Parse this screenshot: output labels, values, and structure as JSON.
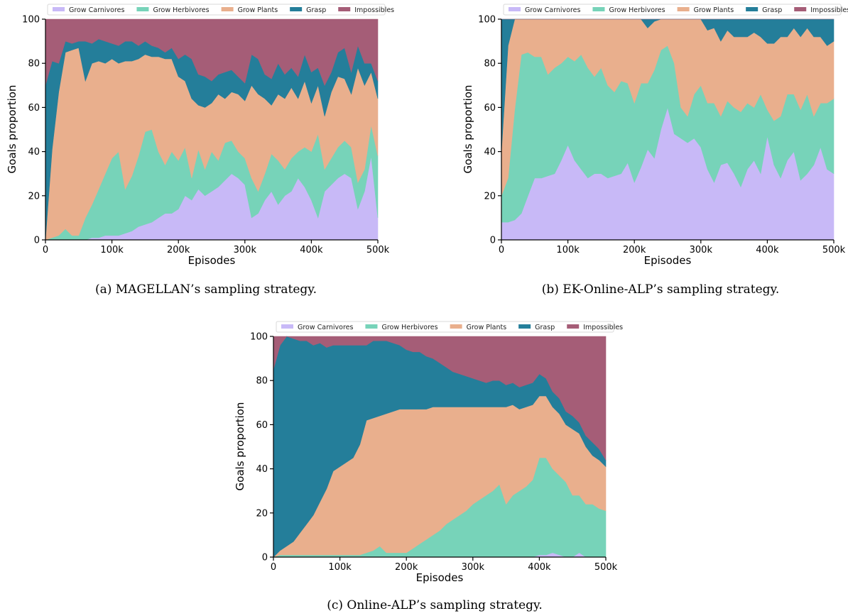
{
  "chart_data": [
    {
      "type": "area",
      "stacked": true,
      "normalized": true,
      "caption": "(a) MAGELLAN’s sampling strategy.",
      "xlabel": "Episodes",
      "ylabel": "Goals proportion",
      "xlim": [
        0,
        500000
      ],
      "ylim": [
        0,
        100
      ],
      "xticks": [
        "0",
        "100k",
        "200k",
        "300k",
        "400k",
        "500k"
      ],
      "yticks": [
        "0",
        "20",
        "40",
        "60",
        "80",
        "100"
      ],
      "legend_position": "top",
      "x": [
        0,
        10000,
        20000,
        30000,
        40000,
        50000,
        60000,
        70000,
        80000,
        90000,
        100000,
        110000,
        120000,
        130000,
        140000,
        150000,
        160000,
        170000,
        180000,
        190000,
        200000,
        210000,
        220000,
        230000,
        240000,
        250000,
        260000,
        270000,
        280000,
        290000,
        300000,
        310000,
        320000,
        330000,
        340000,
        350000,
        360000,
        370000,
        380000,
        390000,
        400000,
        410000,
        420000,
        430000,
        440000,
        450000,
        460000,
        470000,
        480000,
        490000,
        500000
      ],
      "series": [
        {
          "name": "Grow Carnivores",
          "color": "#c8b9f7",
          "values": [
            0,
            0,
            0,
            0,
            0,
            0,
            0,
            1,
            1,
            2,
            2,
            2,
            3,
            4,
            6,
            7,
            8,
            10,
            12,
            12,
            14,
            20,
            18,
            23,
            20,
            22,
            24,
            27,
            30,
            28,
            25,
            10,
            12,
            18,
            22,
            16,
            20,
            22,
            28,
            24,
            18,
            10,
            22,
            25,
            28,
            30,
            28,
            14,
            22,
            38,
            10
          ]
        },
        {
          "name": "Grow Herbivores",
          "color": "#77d3b9",
          "values": [
            0,
            1,
            2,
            5,
            2,
            2,
            10,
            15,
            22,
            28,
            35,
            38,
            20,
            25,
            32,
            42,
            42,
            30,
            22,
            28,
            22,
            22,
            10,
            18,
            12,
            18,
            12,
            17,
            15,
            12,
            12,
            18,
            10,
            12,
            17,
            20,
            12,
            15,
            12,
            18,
            22,
            38,
            10,
            12,
            14,
            15,
            14,
            12,
            10,
            14,
            28
          ]
        },
        {
          "name": "Grow Plants",
          "color": "#e9af8d",
          "values": [
            0,
            40,
            65,
            80,
            84,
            85,
            62,
            64,
            58,
            50,
            45,
            40,
            58,
            52,
            44,
            35,
            33,
            43,
            48,
            42,
            38,
            30,
            36,
            20,
            28,
            22,
            30,
            20,
            22,
            26,
            26,
            42,
            44,
            34,
            22,
            30,
            32,
            32,
            24,
            30,
            22,
            22,
            24,
            30,
            32,
            28,
            24,
            52,
            38,
            24,
            26
          ]
        },
        {
          "name": "Grasp",
          "color": "#247e9a",
          "values": [
            70,
            40,
            13,
            5,
            3,
            3,
            18,
            9,
            10,
            10,
            7,
            8,
            9,
            9,
            6,
            6,
            5,
            4,
            3,
            5,
            8,
            12,
            18,
            14,
            14,
            10,
            9,
            12,
            10,
            8,
            8,
            14,
            16,
            11,
            12,
            14,
            11,
            9,
            10,
            12,
            14,
            8,
            14,
            9,
            11,
            14,
            10,
            10,
            10,
            4,
            8
          ]
        },
        {
          "name": "Impossibles",
          "color": "#a55d77",
          "values": [
            30,
            19,
            20,
            10,
            11,
            10,
            10,
            11,
            9,
            10,
            11,
            12,
            10,
            10,
            12,
            10,
            12,
            13,
            15,
            13,
            18,
            16,
            18,
            25,
            26,
            28,
            25,
            24,
            23,
            26,
            29,
            16,
            18,
            25,
            27,
            20,
            25,
            22,
            26,
            16,
            24,
            22,
            30,
            24,
            15,
            13,
            24,
            12,
            20,
            20,
            28
          ]
        }
      ]
    },
    {
      "type": "area",
      "stacked": true,
      "normalized": true,
      "caption": "(b) EK-Online-ALP’s sampling strategy.",
      "xlabel": "Episodes",
      "ylabel": "Goals proportion",
      "xlim": [
        0,
        500000
      ],
      "ylim": [
        0,
        100
      ],
      "xticks": [
        "0",
        "100k",
        "200k",
        "300k",
        "400k",
        "500k"
      ],
      "yticks": [
        "0",
        "20",
        "40",
        "60",
        "80",
        "100"
      ],
      "legend_position": "top",
      "x": [
        0,
        10000,
        20000,
        30000,
        40000,
        50000,
        60000,
        70000,
        80000,
        90000,
        100000,
        110000,
        120000,
        130000,
        140000,
        150000,
        160000,
        170000,
        180000,
        190000,
        200000,
        210000,
        220000,
        230000,
        240000,
        250000,
        260000,
        270000,
        280000,
        290000,
        300000,
        310000,
        320000,
        330000,
        340000,
        350000,
        360000,
        370000,
        380000,
        390000,
        400000,
        410000,
        420000,
        430000,
        440000,
        450000,
        460000,
        470000,
        480000,
        490000,
        500000
      ],
      "series": [
        {
          "name": "Grow Carnivores",
          "color": "#c8b9f7",
          "values": [
            8,
            8,
            9,
            12,
            20,
            28,
            28,
            29,
            30,
            36,
            43,
            36,
            32,
            28,
            30,
            30,
            28,
            29,
            30,
            35,
            26,
            33,
            41,
            37,
            50,
            60,
            48,
            46,
            44,
            46,
            42,
            32,
            26,
            34,
            35,
            30,
            24,
            32,
            36,
            30,
            47,
            34,
            28,
            36,
            40,
            27,
            30,
            34,
            42,
            32,
            30
          ]
        },
        {
          "name": "Grow Herbivores",
          "color": "#77d3b9",
          "values": [
            12,
            20,
            50,
            72,
            65,
            55,
            55,
            46,
            48,
            44,
            40,
            45,
            52,
            50,
            44,
            48,
            42,
            38,
            42,
            36,
            36,
            38,
            30,
            40,
            36,
            28,
            32,
            14,
            12,
            20,
            28,
            30,
            36,
            22,
            28,
            30,
            34,
            30,
            24,
            36,
            12,
            20,
            28,
            30,
            26,
            32,
            36,
            22,
            20,
            30,
            34
          ]
        },
        {
          "name": "Grow Plants",
          "color": "#e9af8d",
          "values": [
            20,
            60,
            41,
            16,
            15,
            17,
            17,
            25,
            22,
            20,
            17,
            19,
            16,
            22,
            26,
            22,
            30,
            33,
            28,
            29,
            38,
            29,
            25,
            22,
            14,
            12,
            20,
            40,
            44,
            34,
            30,
            33,
            34,
            34,
            32,
            32,
            34,
            30,
            34,
            26,
            30,
            35,
            36,
            26,
            30,
            33,
            30,
            36,
            30,
            26,
            26
          ]
        },
        {
          "name": "Grasp",
          "color": "#247e9a",
          "values": [
            60,
            12,
            0,
            0,
            0,
            0,
            0,
            0,
            0,
            0,
            0,
            0,
            0,
            0,
            0,
            0,
            0,
            0,
            0,
            0,
            0,
            0,
            4,
            1,
            0,
            0,
            0,
            0,
            0,
            0,
            0,
            5,
            4,
            10,
            5,
            8,
            8,
            8,
            6,
            8,
            11,
            11,
            8,
            8,
            4,
            8,
            4,
            8,
            8,
            12,
            10
          ]
        },
        {
          "name": "Impossibles",
          "color": "#a55d77",
          "values": [
            0,
            0,
            0,
            0,
            0,
            0,
            0,
            0,
            0,
            0,
            0,
            0,
            0,
            0,
            0,
            0,
            0,
            0,
            0,
            0,
            0,
            0,
            0,
            0,
            0,
            0,
            0,
            0,
            0,
            0,
            0,
            0,
            0,
            0,
            0,
            0,
            0,
            0,
            0,
            0,
            0,
            0,
            0,
            0,
            0,
            0,
            0,
            0,
            0,
            0,
            0
          ]
        }
      ]
    },
    {
      "type": "area",
      "stacked": true,
      "normalized": true,
      "caption": "(c) Online-ALP’s sampling strategy.",
      "xlabel": "Episodes",
      "ylabel": "Goals proportion",
      "xlim": [
        0,
        500000
      ],
      "ylim": [
        0,
        100
      ],
      "xticks": [
        "0",
        "100k",
        "200k",
        "300k",
        "400k",
        "500k"
      ],
      "yticks": [
        "0",
        "20",
        "40",
        "60",
        "80",
        "100"
      ],
      "legend_position": "top",
      "x": [
        0,
        10000,
        20000,
        30000,
        40000,
        50000,
        60000,
        70000,
        80000,
        90000,
        100000,
        110000,
        120000,
        130000,
        140000,
        150000,
        160000,
        170000,
        180000,
        190000,
        200000,
        210000,
        220000,
        230000,
        240000,
        250000,
        260000,
        270000,
        280000,
        290000,
        300000,
        310000,
        320000,
        330000,
        340000,
        350000,
        360000,
        370000,
        380000,
        390000,
        400000,
        410000,
        420000,
        430000,
        440000,
        450000,
        460000,
        470000,
        480000,
        490000,
        500000
      ],
      "series": [
        {
          "name": "Grow Carnivores",
          "color": "#c8b9f7",
          "values": [
            0,
            0,
            0,
            0,
            0,
            0,
            0,
            0,
            0,
            0,
            0,
            0,
            0,
            0,
            0,
            0,
            0,
            0,
            0,
            0,
            0,
            0,
            0,
            0,
            0,
            0,
            0,
            0,
            0,
            0,
            0,
            0,
            0,
            0,
            0,
            0,
            0,
            0,
            0,
            0,
            1,
            1,
            2,
            1,
            0,
            0,
            2,
            0,
            0,
            0,
            0
          ]
        },
        {
          "name": "Grow Herbivores",
          "color": "#77d3b9",
          "values": [
            0,
            1,
            1,
            1,
            1,
            1,
            1,
            1,
            1,
            1,
            1,
            1,
            1,
            1,
            2,
            3,
            5,
            2,
            2,
            2,
            2,
            4,
            6,
            8,
            10,
            12,
            15,
            17,
            19,
            21,
            24,
            26,
            28,
            30,
            33,
            24,
            28,
            30,
            32,
            35,
            44,
            44,
            38,
            36,
            34,
            28,
            26,
            24,
            24,
            22,
            21
          ]
        },
        {
          "name": "Grow Plants",
          "color": "#e9af8d",
          "values": [
            0,
            2,
            4,
            6,
            10,
            14,
            18,
            24,
            30,
            38,
            40,
            42,
            44,
            50,
            60,
            60,
            59,
            63,
            64,
            65,
            65,
            63,
            61,
            59,
            58,
            56,
            53,
            51,
            49,
            47,
            44,
            42,
            40,
            38,
            35,
            44,
            41,
            37,
            36,
            34,
            28,
            28,
            28,
            28,
            26,
            30,
            28,
            26,
            22,
            22,
            20
          ]
        },
        {
          "name": "Grasp",
          "color": "#247e9a",
          "values": [
            85,
            93,
            95,
            92,
            87,
            83,
            77,
            72,
            64,
            57,
            55,
            53,
            51,
            45,
            34,
            35,
            34,
            33,
            31,
            29,
            27,
            26,
            26,
            24,
            22,
            20,
            18,
            16,
            15,
            14,
            13,
            12,
            11,
            12,
            12,
            10,
            10,
            10,
            10,
            10,
            10,
            8,
            7,
            7,
            6,
            6,
            5,
            5,
            6,
            5,
            3
          ]
        },
        {
          "name": "Impossibles",
          "color": "#a55d77",
          "values": [
            15,
            4,
            0,
            1,
            2,
            2,
            4,
            3,
            5,
            4,
            4,
            4,
            4,
            4,
            4,
            2,
            2,
            2,
            3,
            4,
            6,
            7,
            7,
            9,
            10,
            12,
            14,
            16,
            17,
            18,
            19,
            20,
            21,
            20,
            20,
            22,
            21,
            23,
            22,
            21,
            17,
            19,
            25,
            28,
            34,
            36,
            39,
            45,
            48,
            51,
            56
          ]
        }
      ]
    }
  ]
}
